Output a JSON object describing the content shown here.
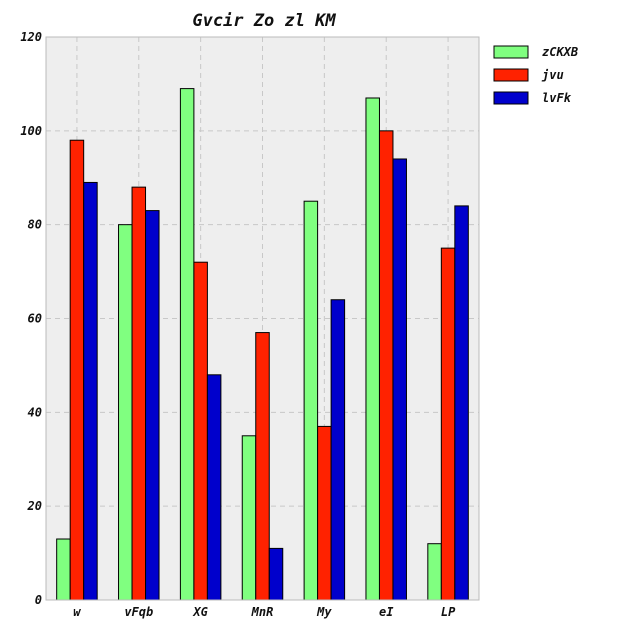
{
  "chart_data": {
    "type": "bar",
    "title": "Gvcir Zo zl KM",
    "categories": [
      "w",
      "vFqb",
      "XG",
      "MnR",
      "My",
      "eI",
      "LP"
    ],
    "series": [
      {
        "name": "zCKXB",
        "color": "#80ff80",
        "values": [
          13,
          80,
          109,
          35,
          85,
          107,
          12
        ]
      },
      {
        "name": "jvu",
        "color": "#ff2200",
        "values": [
          98,
          88,
          72,
          57,
          37,
          100,
          75
        ]
      },
      {
        "name": "lvFk",
        "color": "#0000cc",
        "values": [
          89,
          83,
          48,
          11,
          64,
          94,
          84
        ]
      }
    ],
    "ylim": [
      0,
      120
    ],
    "yticks": [
      0,
      20,
      40,
      60,
      80,
      100,
      120
    ],
    "grid": true,
    "plot_background": "#eeeeee",
    "legend_position": "top-right-outside"
  }
}
